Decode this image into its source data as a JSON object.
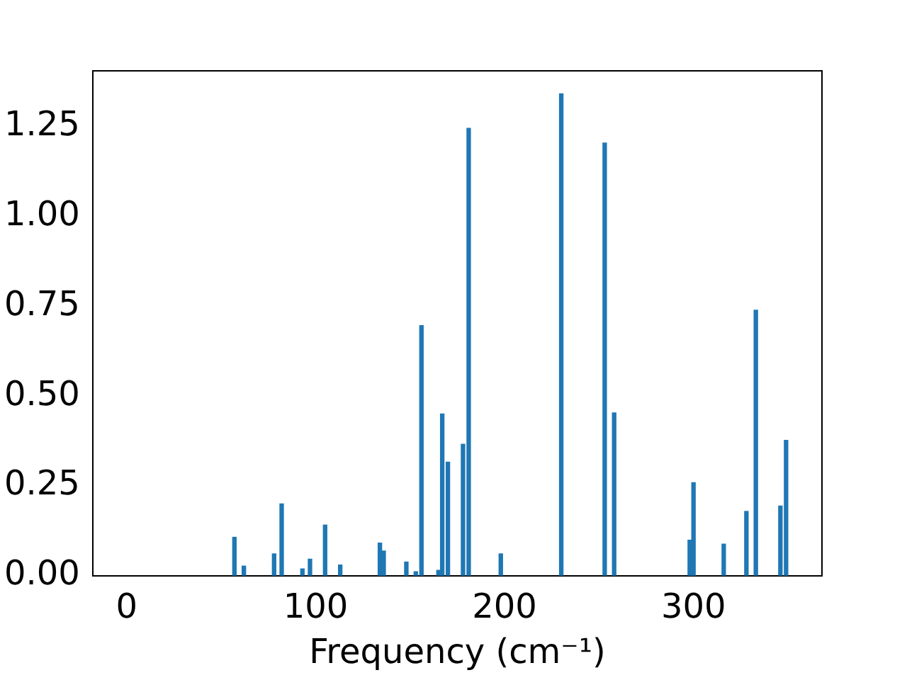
{
  "chart_data": {
    "type": "bar",
    "xlabel": "Frequency (cm⁻¹)",
    "color": "#1f77b4",
    "x": [
      57,
      62,
      78,
      82,
      93,
      97,
      105,
      113,
      134,
      136,
      148,
      153,
      156,
      165,
      167,
      170,
      178,
      181,
      198,
      230,
      253,
      258,
      298,
      300,
      316,
      328,
      333,
      346,
      349
    ],
    "values": [
      0.107,
      0.027,
      0.061,
      0.2,
      0.019,
      0.046,
      0.141,
      0.03,
      0.091,
      0.069,
      0.038,
      0.011,
      0.696,
      0.015,
      0.45,
      0.316,
      0.366,
      1.245,
      0.061,
      1.341,
      1.204,
      0.453,
      0.099,
      0.259,
      0.088,
      0.179,
      0.739,
      0.194,
      0.377
    ],
    "xlim": [
      -18,
      368
    ],
    "xticks": [
      0,
      100,
      200,
      300
    ],
    "ylim": [
      0,
      1.405
    ],
    "yticks": [
      {
        "value": 0,
        "label": "0.00"
      },
      0.25,
      {
        "value": 0.5,
        "label": "0.50"
      },
      0.75,
      {
        "value": 1,
        "label": "1.00"
      },
      1.25
    ],
    "grid": false,
    "legend": false
  }
}
